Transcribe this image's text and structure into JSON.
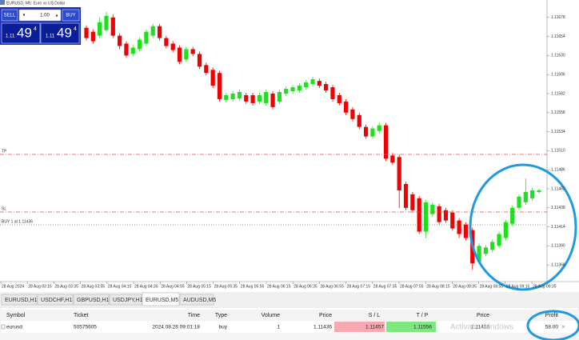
{
  "window_title": "EURUSD, M5:  Euro vs US Dollar",
  "trade_panel": {
    "sell_label": "SELL",
    "buy_label": "BUY",
    "volume": "1.00",
    "sell_price": {
      "prefix": "1.11",
      "big": "49",
      "sup": "4"
    },
    "buy_price": {
      "prefix": "1.11",
      "big": "49",
      "sup": "4"
    }
  },
  "chart": {
    "ylim": [
      1.11345,
      1.117
    ],
    "price_ticks": [
      1.11678,
      1.11654,
      {
        "value": 1.1163,
        "label": "1.11630"
      },
      1.11606,
      1.11582,
      1.11558,
      1.11534,
      {
        "value": 1.1151,
        "label": "1.11510"
      },
      1.11486,
      1.11462,
      1.11438,
      1.11414,
      {
        "value": 1.1139,
        "label": "1.11390"
      },
      1.11366
    ],
    "open": [
      1.11665,
      1.1166,
      1.11655,
      1.11662,
      1.11678,
      1.11655,
      1.11645,
      1.11632,
      1.11638,
      1.11645,
      1.11655,
      1.11667,
      1.11652,
      1.11645,
      1.1164,
      1.11625,
      1.11638,
      1.11632,
      1.11618,
      1.11612,
      1.11608,
      1.11574,
      1.11575,
      1.11576,
      1.1158,
      1.1158,
      1.11572,
      1.1157,
      1.11582,
      1.11572,
      1.11582,
      1.11585,
      1.11586,
      1.1159,
      1.11594,
      1.11598,
      1.11594,
      1.1159,
      1.1158,
      1.11572,
      1.11562,
      1.11555,
      1.1154,
      1.11528,
      1.11535,
      1.11542,
      1.11504,
      1.11502,
      1.11468,
      1.11455,
      1.1145,
      1.11408,
      1.1143,
      1.1144,
      1.11435,
      1.11432,
      1.11422,
      1.11417,
      1.1141,
      1.1137,
      1.1138,
      1.11385,
      1.1139,
      1.114,
      1.11418,
      1.11438,
      1.11445,
      1.1145,
      1.11458
    ],
    "high": [
      1.11668,
      1.11663,
      1.11678,
      1.11685,
      1.11682,
      1.11658,
      1.11648,
      1.11643,
      1.11653,
      1.11663,
      1.1167,
      1.1167,
      1.11655,
      1.11648,
      1.11643,
      1.11641,
      1.11641,
      1.11635,
      1.11621,
      1.11615,
      1.11611,
      1.11583,
      1.11585,
      1.11587,
      1.11583,
      1.11583,
      1.11583,
      1.11587,
      1.11585,
      1.11587,
      1.11591,
      1.11593,
      1.11595,
      1.11599,
      1.11603,
      1.11601,
      1.11597,
      1.11593,
      1.11583,
      1.11575,
      1.11565,
      1.11558,
      1.11543,
      1.11541,
      1.11545,
      1.11545,
      1.11507,
      1.11505,
      1.11471,
      1.11458,
      1.11453,
      1.11448,
      1.11445,
      1.11443,
      1.11438,
      1.11435,
      1.11425,
      1.1142,
      1.11413,
      1.11393,
      1.11391,
      1.11398,
      1.11408,
      1.11423,
      1.11441,
      1.11455,
      1.11475,
      1.11463,
      1.11462
    ],
    "low": [
      1.11649,
      1.11645,
      1.11652,
      1.1166,
      1.11652,
      1.11638,
      1.11627,
      1.11629,
      1.11635,
      1.11642,
      1.11652,
      1.11649,
      1.11639,
      1.11634,
      1.11619,
      1.11622,
      1.11629,
      1.11613,
      1.11605,
      1.11589,
      1.11572,
      1.11571,
      1.11572,
      1.11573,
      1.11569,
      1.11567,
      1.11569,
      1.11567,
      1.11562,
      1.11569,
      1.11579,
      1.11582,
      1.11583,
      1.11587,
      1.11591,
      1.11589,
      1.11583,
      1.11572,
      1.11567,
      1.11555,
      1.11547,
      1.11537,
      1.11525,
      1.11525,
      1.11532,
      1.11497,
      1.11492,
      1.11438,
      1.11435,
      1.11432,
      1.11405,
      1.114,
      1.11427,
      1.11417,
      1.11419,
      1.11409,
      1.114,
      1.11397,
      1.1136,
      1.11367,
      1.11377,
      1.11382,
      1.11387,
      1.11397,
      1.11415,
      1.11435,
      1.11442,
      1.11447,
      1.11456
    ],
    "close": [
      1.11652,
      1.11648,
      1.11672,
      1.1168,
      1.11655,
      1.11642,
      1.1163,
      1.1164,
      1.1165,
      1.1166,
      1.11667,
      1.11652,
      1.11642,
      1.11637,
      1.11622,
      1.11638,
      1.11632,
      1.11616,
      1.11608,
      1.11592,
      1.11575,
      1.1158,
      1.11582,
      1.11584,
      1.11572,
      1.1157,
      1.1158,
      1.11584,
      1.11565,
      1.11584,
      1.11588,
      1.1159,
      1.11592,
      1.11596,
      1.116,
      1.11592,
      1.11586,
      1.11575,
      1.1157,
      1.11558,
      1.1155,
      1.1154,
      1.11528,
      1.11538,
      1.11542,
      1.115,
      1.11495,
      1.1146,
      1.11438,
      1.11435,
      1.11408,
      1.11445,
      1.11442,
      1.1142,
      1.11422,
      1.11412,
      1.11405,
      1.114,
      1.11368,
      1.1139,
      1.11388,
      1.11395,
      1.11405,
      1.1142,
      1.11438,
      1.11452,
      1.11458,
      1.1146,
      1.1146
    ],
    "bull_color": "#1ee01e",
    "bear_color": "#f00000",
    "time_labels": [
      "28 Aug 2024",
      "28 Aug 03:15",
      "28 Aug 03:35",
      "28 Aug 03:55",
      "28 Aug 04:15",
      "28 Aug 04:35",
      "28 Aug 04:55",
      "28 Aug 05:15",
      "28 Aug 05:35",
      "28 Aug 05:55",
      "28 Aug 06:15",
      "28 Aug 06:35",
      "28 Aug 06:55",
      "28 Aug 07:15",
      "28 Aug 07:35",
      "28 Aug 07:55",
      "28 Aug 08:15",
      "28 Aug 08:35",
      "28 Aug 08:55",
      "28 Aug 09:15",
      "28 Aug 09:35"
    ],
    "tp_label": "TP",
    "sl_label": "SL",
    "entry_label": "BUY 1 at 1.11436"
  },
  "tabs": [
    "EURUSD,H1",
    "USDCHF,H1",
    "GBPUSD,H1",
    "USDJPY,H1",
    "EURUSD,M5",
    "AUDUSD,M5"
  ],
  "table": {
    "headers": [
      "Symbol",
      "Ticket",
      "Time",
      "Type",
      "Volume",
      "Price",
      "S / L",
      "T / P",
      "Price",
      "Profit"
    ],
    "rows": [
      [
        "eurusd",
        "50575605",
        "2024.08.28 09:01:18",
        "buy",
        "1",
        "1.11436",
        "1.11457",
        "1.11556",
        "1.11456",
        "58.00"
      ]
    ]
  },
  "watermark": "Activate Windows"
}
